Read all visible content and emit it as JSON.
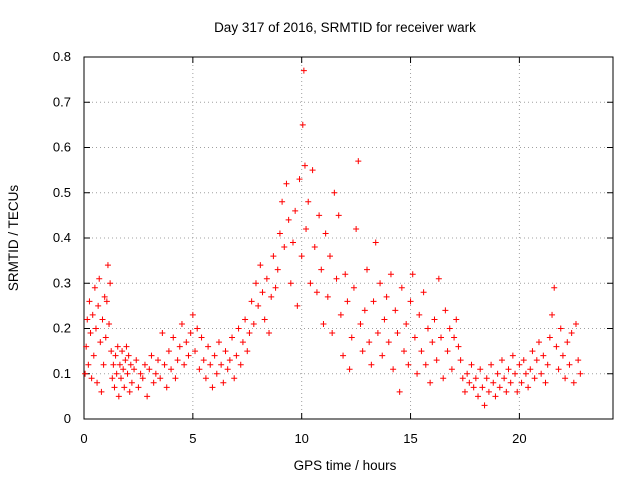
{
  "chart_data": {
    "type": "scatter",
    "title": "Day 317 of 2016, SRMTID for receiver wark",
    "xlabel": "GPS time / hours",
    "ylabel": "SRMTID / TECUs",
    "xlim": [
      0,
      24.3
    ],
    "ylim": [
      0,
      0.8
    ],
    "xticks": [
      0,
      5,
      10,
      15,
      20
    ],
    "yticks": [
      0,
      0.1,
      0.2,
      0.3,
      0.4,
      0.5,
      0.6,
      0.7,
      0.8
    ],
    "grid": true,
    "marker": "+",
    "color": "#ff0000",
    "series": [
      {
        "name": "SRMTID",
        "points": [
          [
            0.05,
            0.1
          ],
          [
            0.1,
            0.16
          ],
          [
            0.15,
            0.22
          ],
          [
            0.2,
            0.12
          ],
          [
            0.25,
            0.26
          ],
          [
            0.3,
            0.19
          ],
          [
            0.35,
            0.09
          ],
          [
            0.4,
            0.23
          ],
          [
            0.45,
            0.14
          ],
          [
            0.5,
            0.29
          ],
          [
            0.55,
            0.2
          ],
          [
            0.6,
            0.08
          ],
          [
            0.65,
            0.25
          ],
          [
            0.7,
            0.31
          ],
          [
            0.75,
            0.17
          ],
          [
            0.8,
            0.06
          ],
          [
            0.85,
            0.22
          ],
          [
            0.9,
            0.12
          ],
          [
            0.95,
            0.27
          ],
          [
            1.0,
            0.18
          ],
          [
            1.05,
            0.26
          ],
          [
            1.1,
            0.34
          ],
          [
            1.15,
            0.21
          ],
          [
            1.2,
            0.3
          ],
          [
            1.25,
            0.15
          ],
          [
            1.3,
            0.09
          ],
          [
            1.35,
            0.12
          ],
          [
            1.4,
            0.07
          ],
          [
            1.45,
            0.14
          ],
          [
            1.5,
            0.1
          ],
          [
            1.55,
            0.16
          ],
          [
            1.6,
            0.05
          ],
          [
            1.65,
            0.12
          ],
          [
            1.7,
            0.09
          ],
          [
            1.75,
            0.15
          ],
          [
            1.8,
            0.11
          ],
          [
            1.85,
            0.07
          ],
          [
            1.9,
            0.13
          ],
          [
            1.95,
            0.16
          ],
          [
            2.0,
            0.1
          ],
          [
            2.05,
            0.14
          ],
          [
            2.1,
            0.06
          ],
          [
            2.15,
            0.12
          ],
          [
            2.2,
            0.08
          ],
          [
            2.3,
            0.11
          ],
          [
            2.4,
            0.13
          ],
          [
            2.5,
            0.07
          ],
          [
            2.6,
            0.1
          ],
          [
            2.7,
            0.09
          ],
          [
            2.8,
            0.12
          ],
          [
            2.9,
            0.05
          ],
          [
            3.0,
            0.11
          ],
          [
            3.1,
            0.14
          ],
          [
            3.2,
            0.08
          ],
          [
            3.3,
            0.1
          ],
          [
            3.4,
            0.13
          ],
          [
            3.5,
            0.09
          ],
          [
            3.6,
            0.19
          ],
          [
            3.7,
            0.12
          ],
          [
            3.8,
            0.07
          ],
          [
            3.9,
            0.15
          ],
          [
            4.0,
            0.11
          ],
          [
            4.1,
            0.18
          ],
          [
            4.2,
            0.09
          ],
          [
            4.3,
            0.13
          ],
          [
            4.4,
            0.16
          ],
          [
            4.5,
            0.21
          ],
          [
            4.6,
            0.12
          ],
          [
            4.7,
            0.17
          ],
          [
            4.8,
            0.14
          ],
          [
            4.9,
            0.19
          ],
          [
            5.0,
            0.23
          ],
          [
            5.1,
            0.15
          ],
          [
            5.2,
            0.2
          ],
          [
            5.3,
            0.11
          ],
          [
            5.4,
            0.18
          ],
          [
            5.5,
            0.13
          ],
          [
            5.6,
            0.09
          ],
          [
            5.7,
            0.16
          ],
          [
            5.8,
            0.12
          ],
          [
            5.9,
            0.07
          ],
          [
            6.0,
            0.14
          ],
          [
            6.1,
            0.1
          ],
          [
            6.2,
            0.17
          ],
          [
            6.3,
            0.12
          ],
          [
            6.4,
            0.08
          ],
          [
            6.5,
            0.15
          ],
          [
            6.6,
            0.11
          ],
          [
            6.7,
            0.13
          ],
          [
            6.8,
            0.18
          ],
          [
            6.9,
            0.09
          ],
          [
            7.0,
            0.14
          ],
          [
            7.1,
            0.2
          ],
          [
            7.2,
            0.12
          ],
          [
            7.3,
            0.17
          ],
          [
            7.4,
            0.22
          ],
          [
            7.5,
            0.15
          ],
          [
            7.6,
            0.19
          ],
          [
            7.7,
            0.26
          ],
          [
            7.8,
            0.21
          ],
          [
            7.9,
            0.3
          ],
          [
            8.0,
            0.25
          ],
          [
            8.1,
            0.34
          ],
          [
            8.2,
            0.28
          ],
          [
            8.3,
            0.22
          ],
          [
            8.4,
            0.31
          ],
          [
            8.5,
            0.19
          ],
          [
            8.6,
            0.27
          ],
          [
            8.7,
            0.36
          ],
          [
            8.8,
            0.29
          ],
          [
            8.9,
            0.33
          ],
          [
            9.0,
            0.41
          ],
          [
            9.1,
            0.48
          ],
          [
            9.2,
            0.38
          ],
          [
            9.3,
            0.52
          ],
          [
            9.4,
            0.44
          ],
          [
            9.5,
            0.3
          ],
          [
            9.6,
            0.39
          ],
          [
            9.7,
            0.46
          ],
          [
            9.8,
            0.25
          ],
          [
            9.9,
            0.53
          ],
          [
            10.0,
            0.36
          ],
          [
            10.05,
            0.65
          ],
          [
            10.1,
            0.77
          ],
          [
            10.15,
            0.56
          ],
          [
            10.2,
            0.42
          ],
          [
            10.3,
            0.48
          ],
          [
            10.4,
            0.3
          ],
          [
            10.5,
            0.55
          ],
          [
            10.6,
            0.38
          ],
          [
            10.7,
            0.28
          ],
          [
            10.8,
            0.45
          ],
          [
            10.9,
            0.33
          ],
          [
            11.0,
            0.21
          ],
          [
            11.1,
            0.41
          ],
          [
            11.2,
            0.27
          ],
          [
            11.3,
            0.36
          ],
          [
            11.4,
            0.19
          ],
          [
            11.5,
            0.5
          ],
          [
            11.6,
            0.31
          ],
          [
            11.7,
            0.45
          ],
          [
            11.8,
            0.23
          ],
          [
            11.9,
            0.14
          ],
          [
            12.0,
            0.32
          ],
          [
            12.1,
            0.26
          ],
          [
            12.2,
            0.11
          ],
          [
            12.3,
            0.18
          ],
          [
            12.4,
            0.29
          ],
          [
            12.5,
            0.42
          ],
          [
            12.6,
            0.57
          ],
          [
            12.7,
            0.21
          ],
          [
            12.8,
            0.15
          ],
          [
            12.9,
            0.24
          ],
          [
            13.0,
            0.33
          ],
          [
            13.1,
            0.17
          ],
          [
            13.2,
            0.12
          ],
          [
            13.3,
            0.26
          ],
          [
            13.4,
            0.39
          ],
          [
            13.5,
            0.19
          ],
          [
            13.6,
            0.3
          ],
          [
            13.7,
            0.14
          ],
          [
            13.8,
            0.22
          ],
          [
            13.9,
            0.27
          ],
          [
            14.0,
            0.17
          ],
          [
            14.1,
            0.32
          ],
          [
            14.2,
            0.11
          ],
          [
            14.3,
            0.24
          ],
          [
            14.4,
            0.19
          ],
          [
            14.5,
            0.06
          ],
          [
            14.6,
            0.29
          ],
          [
            14.7,
            0.15
          ],
          [
            14.8,
            0.21
          ],
          [
            14.9,
            0.12
          ],
          [
            15.0,
            0.26
          ],
          [
            15.1,
            0.32
          ],
          [
            15.2,
            0.18
          ],
          [
            15.3,
            0.1
          ],
          [
            15.4,
            0.23
          ],
          [
            15.5,
            0.15
          ],
          [
            15.6,
            0.28
          ],
          [
            15.7,
            0.12
          ],
          [
            15.8,
            0.2
          ],
          [
            15.9,
            0.08
          ],
          [
            16.0,
            0.17
          ],
          [
            16.1,
            0.22
          ],
          [
            16.2,
            0.13
          ],
          [
            16.3,
            0.31
          ],
          [
            16.4,
            0.18
          ],
          [
            16.5,
            0.09
          ],
          [
            16.6,
            0.24
          ],
          [
            16.7,
            0.15
          ],
          [
            16.8,
            0.2
          ],
          [
            16.9,
            0.11
          ],
          [
            17.0,
            0.18
          ],
          [
            17.1,
            0.22
          ],
          [
            17.2,
            0.16
          ],
          [
            17.3,
            0.13
          ],
          [
            17.4,
            0.09
          ],
          [
            17.5,
            0.06
          ],
          [
            17.6,
            0.1
          ],
          [
            17.7,
            0.08
          ],
          [
            17.8,
            0.12
          ],
          [
            17.9,
            0.07
          ],
          [
            18.0,
            0.09
          ],
          [
            18.1,
            0.05
          ],
          [
            18.2,
            0.11
          ],
          [
            18.3,
            0.07
          ],
          [
            18.4,
            0.03
          ],
          [
            18.5,
            0.09
          ],
          [
            18.6,
            0.06
          ],
          [
            18.7,
            0.12
          ],
          [
            18.8,
            0.08
          ],
          [
            18.9,
            0.05
          ],
          [
            19.0,
            0.1
          ],
          [
            19.1,
            0.07
          ],
          [
            19.2,
            0.13
          ],
          [
            19.3,
            0.09
          ],
          [
            19.4,
            0.06
          ],
          [
            19.5,
            0.11
          ],
          [
            19.6,
            0.08
          ],
          [
            19.7,
            0.14
          ],
          [
            19.8,
            0.1
          ],
          [
            19.9,
            0.06
          ],
          [
            20.0,
            0.12
          ],
          [
            20.1,
            0.08
          ],
          [
            20.2,
            0.13
          ],
          [
            20.3,
            0.1
          ],
          [
            20.4,
            0.07
          ],
          [
            20.5,
            0.11
          ],
          [
            20.6,
            0.15
          ],
          [
            20.7,
            0.09
          ],
          [
            20.8,
            0.13
          ],
          [
            20.9,
            0.17
          ],
          [
            21.0,
            0.1
          ],
          [
            21.1,
            0.14
          ],
          [
            21.2,
            0.08
          ],
          [
            21.3,
            0.12
          ],
          [
            21.4,
            0.18
          ],
          [
            21.5,
            0.23
          ],
          [
            21.6,
            0.29
          ],
          [
            21.7,
            0.16
          ],
          [
            21.8,
            0.11
          ],
          [
            21.9,
            0.2
          ],
          [
            22.0,
            0.14
          ],
          [
            22.1,
            0.09
          ],
          [
            22.2,
            0.17
          ],
          [
            22.3,
            0.12
          ],
          [
            22.4,
            0.19
          ],
          [
            22.5,
            0.08
          ],
          [
            22.6,
            0.21
          ],
          [
            22.7,
            0.13
          ],
          [
            22.8,
            0.1
          ]
        ]
      }
    ]
  }
}
